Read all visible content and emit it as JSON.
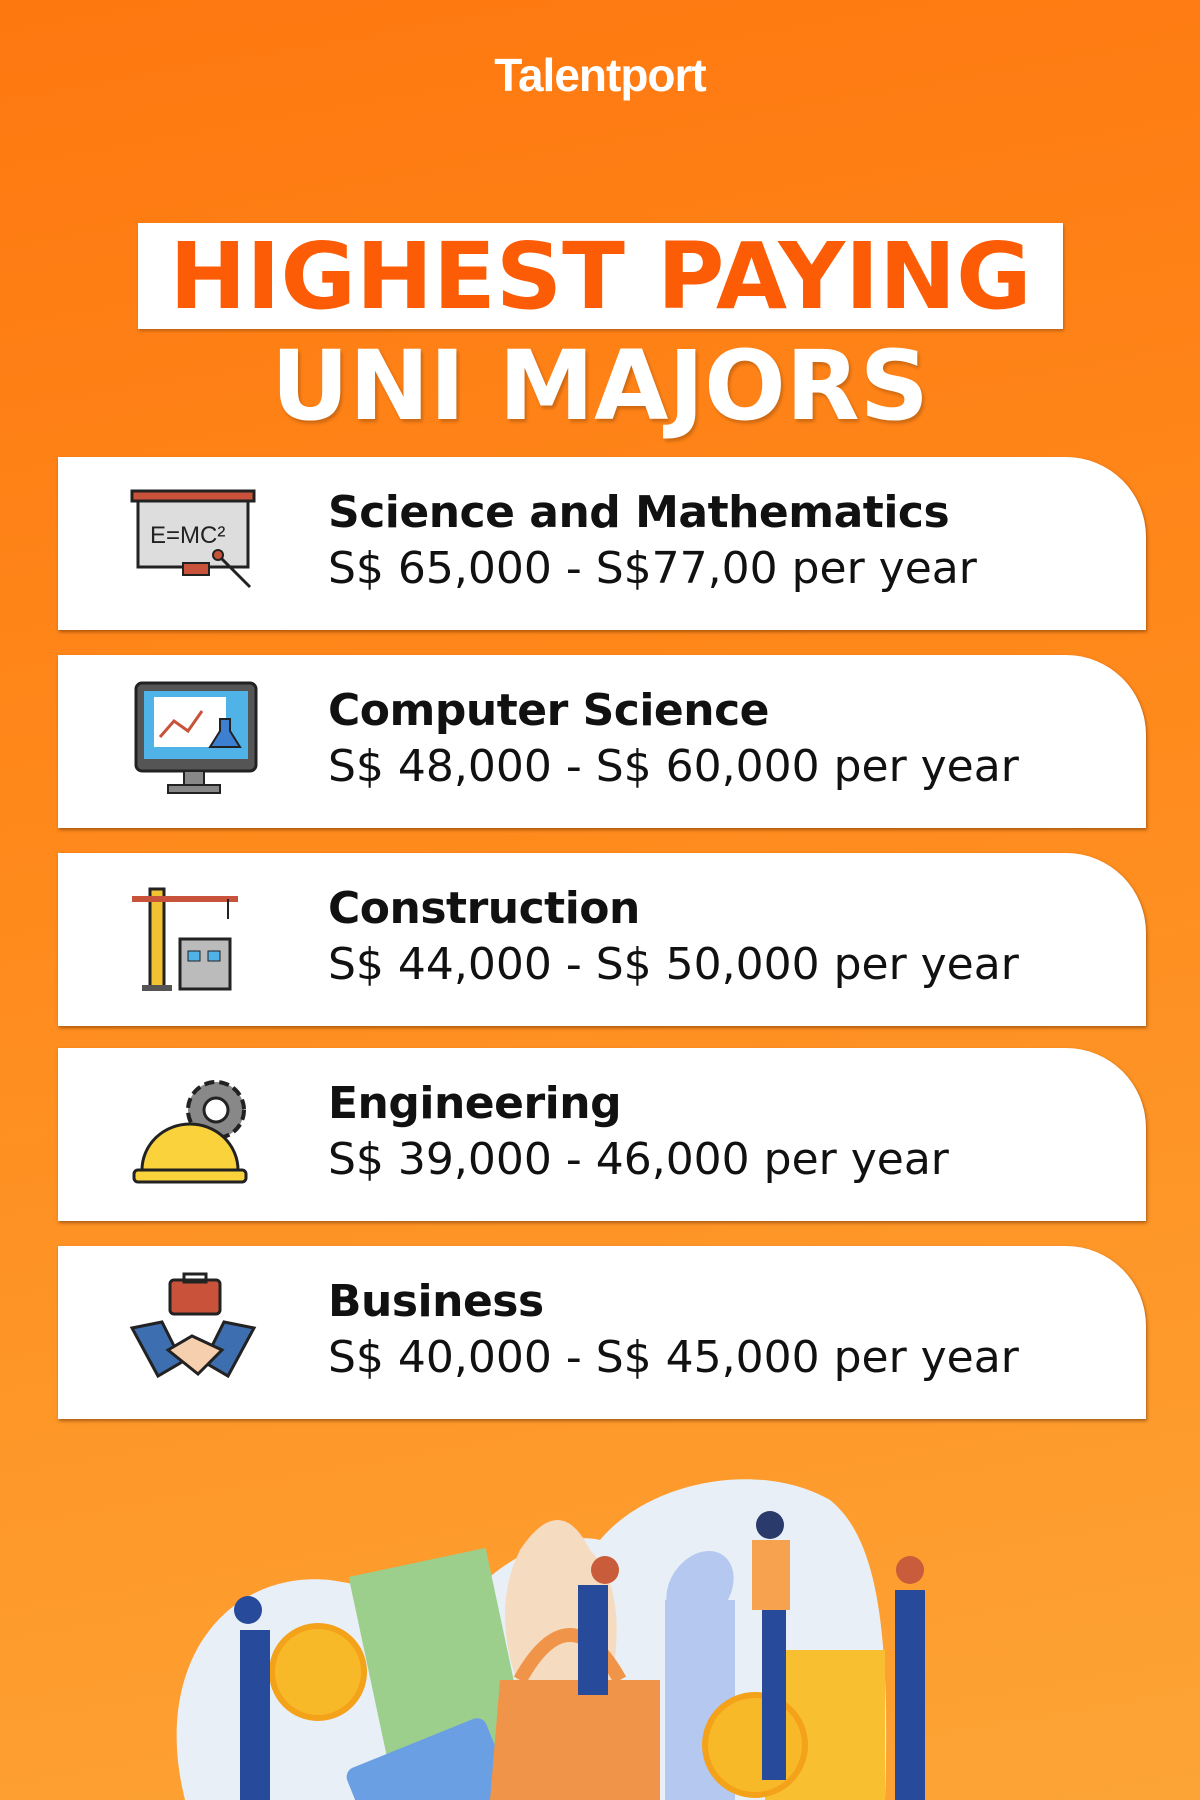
{
  "brand": "Talentport",
  "title_line1": "HIGHEST PAYING",
  "title_line2": "UNI MAJORS",
  "majors": [
    {
      "name": "Science and Mathematics",
      "range": "S$ 65,000 - S$77,00 per year",
      "icon": "whiteboard-emc2-icon"
    },
    {
      "name": "Computer Science",
      "range": "S$ 48,000 - S$ 60,000 per year",
      "icon": "computer-monitor-icon"
    },
    {
      "name": "Construction",
      "range": "S$ 44,000 - S$ 50,000 per year",
      "icon": "crane-building-icon"
    },
    {
      "name": "Engineering",
      "range": "S$ 39,000 - 46,000 per year",
      "icon": "hardhat-gear-icon"
    },
    {
      "name": "Business",
      "range": "S$ 40,000 - S$ 45,000 per year",
      "icon": "handshake-briefcase-icon"
    }
  ],
  "icon_text": {
    "whiteboard": "E=MC²"
  },
  "colors": {
    "accent": "#fc5c05",
    "background_top": "#fe7810",
    "background_bottom": "#fda436"
  }
}
